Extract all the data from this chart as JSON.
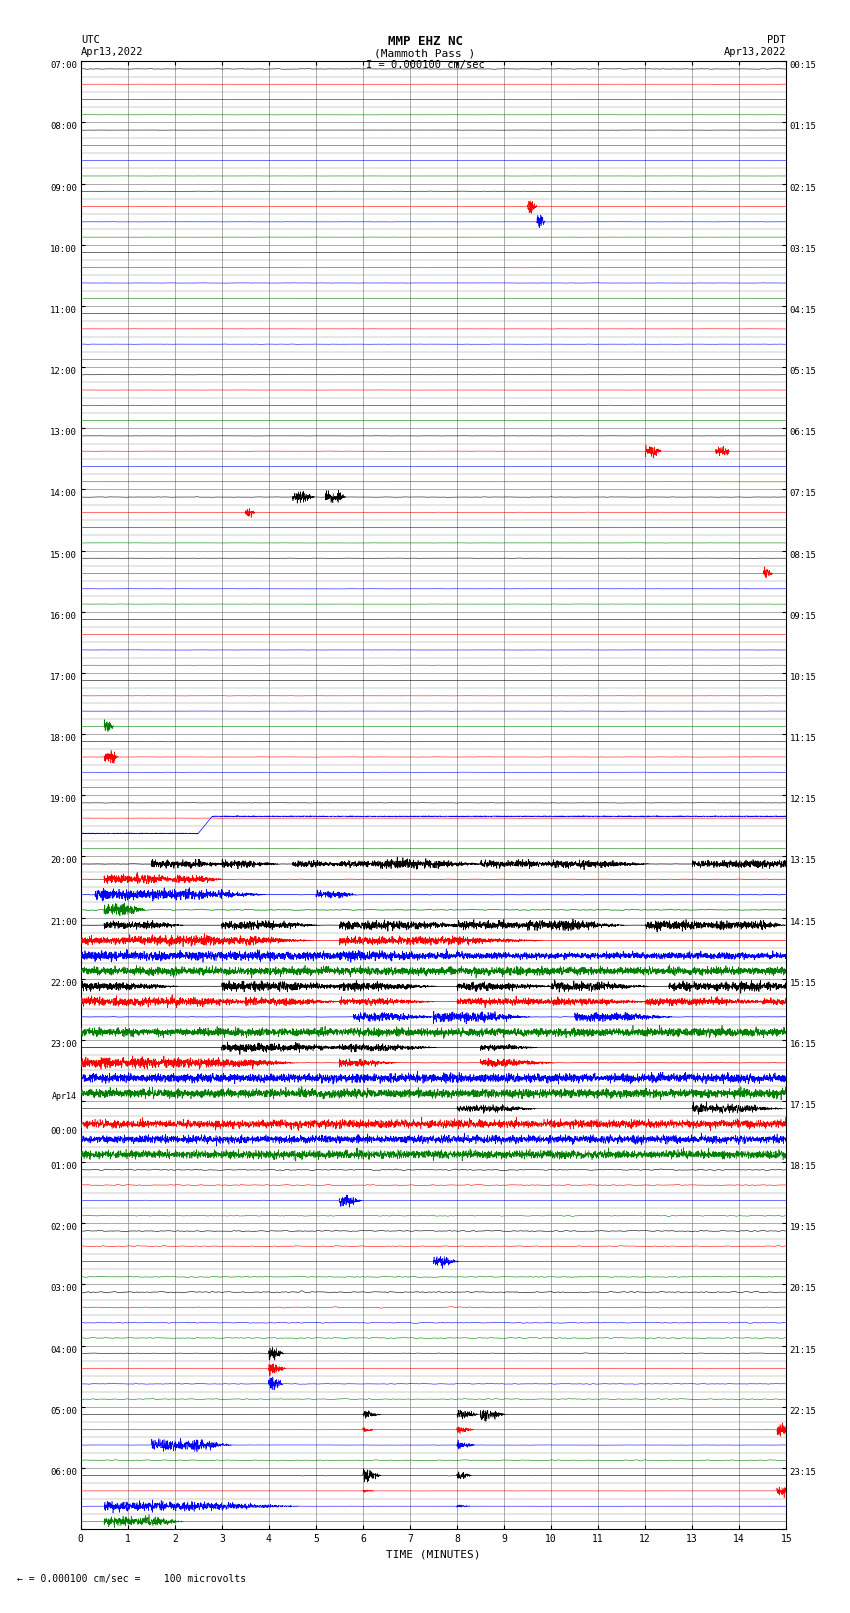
{
  "title_line1": "MMP EHZ NC",
  "title_line2": "(Mammoth Pass )",
  "title_line3": "I = 0.000100 cm/sec",
  "left_label_top": "UTC",
  "left_label_date": "Apr13,2022",
  "right_label_top": "PDT",
  "right_label_date": "Apr13,2022",
  "bottom_note": "= 0.000100 cm/sec =    100 microvolts",
  "xlabel": "TIME (MINUTES)",
  "utc_times": [
    "07:00",
    "08:00",
    "09:00",
    "10:00",
    "11:00",
    "12:00",
    "13:00",
    "14:00",
    "15:00",
    "16:00",
    "17:00",
    "18:00",
    "19:00",
    "20:00",
    "21:00",
    "22:00",
    "23:00",
    "Apr14\n00:00",
    "01:00",
    "02:00",
    "03:00",
    "04:00",
    "05:00",
    "06:00"
  ],
  "pdt_times": [
    "00:15",
    "01:15",
    "02:15",
    "03:15",
    "04:15",
    "05:15",
    "06:15",
    "07:15",
    "08:15",
    "09:15",
    "10:15",
    "11:15",
    "12:15",
    "13:15",
    "14:15",
    "15:15",
    "16:15",
    "17:15",
    "18:15",
    "19:15",
    "20:15",
    "21:15",
    "22:15",
    "23:15"
  ],
  "n_rows": 24,
  "n_minutes": 15,
  "background_color": "#ffffff",
  "grid_color": "#888888",
  "colors": [
    "#000000",
    "#ff0000",
    "#0000ff",
    "#008000"
  ]
}
